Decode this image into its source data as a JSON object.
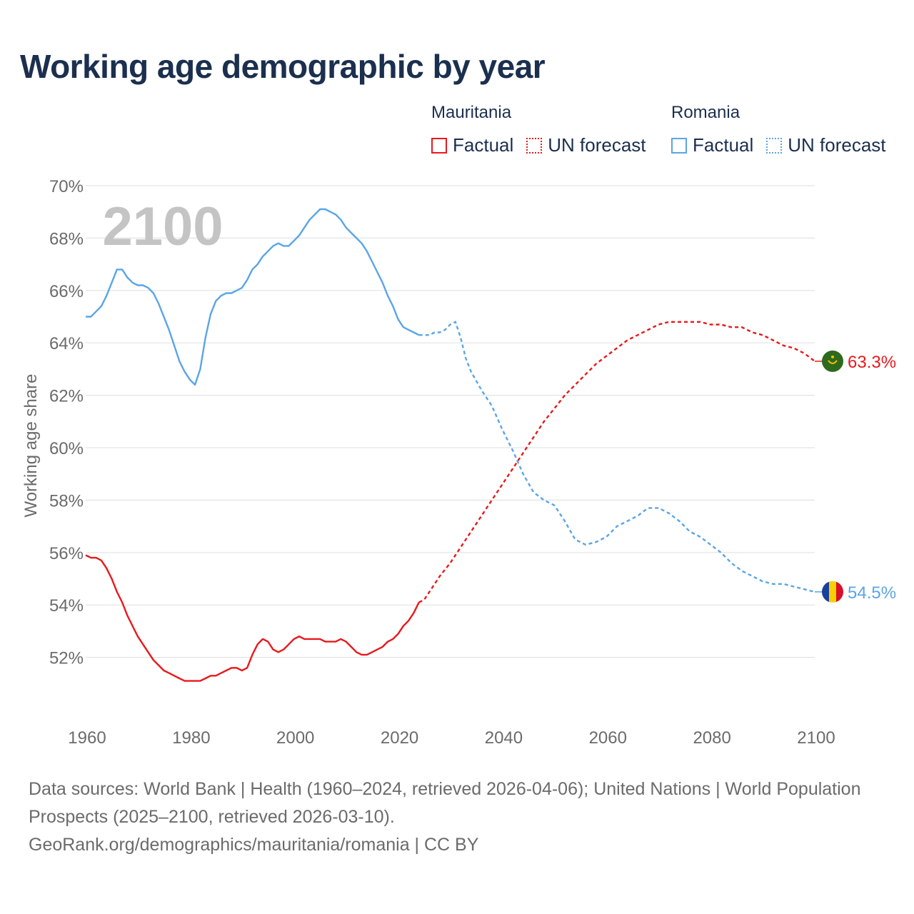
{
  "title": "Working age demographic by year",
  "legend": {
    "groups": [
      {
        "name": "Mauritania",
        "factual_label": "Factual",
        "forecast_label": "UN forecast",
        "color": "#e8191c"
      },
      {
        "name": "Romania",
        "factual_label": "Factual",
        "forecast_label": "UN forecast",
        "color": "#5aa5e6"
      }
    ]
  },
  "chart_data": {
    "type": "line",
    "title": "Working age demographic by year",
    "xlabel": "",
    "ylabel": "Working age share",
    "xlim": [
      1960,
      2100
    ],
    "ylim": [
      50,
      70
    ],
    "yticks": [
      52,
      54,
      56,
      58,
      60,
      62,
      64,
      66,
      68,
      70
    ],
    "ytick_labels": [
      "52%",
      "54%",
      "56%",
      "58%",
      "60%",
      "62%",
      "64%",
      "66%",
      "68%",
      "70%"
    ],
    "xticks": [
      1960,
      1980,
      2000,
      2020,
      2040,
      2060,
      2080,
      2100
    ],
    "xtick_labels": [
      "1960",
      "1980",
      "2000",
      "2020",
      "2040",
      "2060",
      "2080",
      "2100"
    ],
    "year_watermark": "2100",
    "series": [
      {
        "name": "Mauritania",
        "color": "#e8191c",
        "end_label": "63.3%",
        "factual": [
          [
            1960,
            55.9
          ],
          [
            1961,
            55.8
          ],
          [
            1962,
            55.8
          ],
          [
            1963,
            55.7
          ],
          [
            1964,
            55.4
          ],
          [
            1965,
            55.0
          ],
          [
            1966,
            54.5
          ],
          [
            1967,
            54.1
          ],
          [
            1968,
            53.6
          ],
          [
            1969,
            53.2
          ],
          [
            1970,
            52.8
          ],
          [
            1971,
            52.5
          ],
          [
            1972,
            52.2
          ],
          [
            1973,
            51.9
          ],
          [
            1974,
            51.7
          ],
          [
            1975,
            51.5
          ],
          [
            1976,
            51.4
          ],
          [
            1977,
            51.3
          ],
          [
            1978,
            51.2
          ],
          [
            1979,
            51.1
          ],
          [
            1980,
            51.1
          ],
          [
            1981,
            51.1
          ],
          [
            1982,
            51.1
          ],
          [
            1983,
            51.2
          ],
          [
            1984,
            51.3
          ],
          [
            1985,
            51.3
          ],
          [
            1986,
            51.4
          ],
          [
            1987,
            51.5
          ],
          [
            1988,
            51.6
          ],
          [
            1989,
            51.6
          ],
          [
            1990,
            51.5
          ],
          [
            1991,
            51.6
          ],
          [
            1992,
            52.1
          ],
          [
            1993,
            52.5
          ],
          [
            1994,
            52.7
          ],
          [
            1995,
            52.6
          ],
          [
            1996,
            52.3
          ],
          [
            1997,
            52.2
          ],
          [
            1998,
            52.3
          ],
          [
            1999,
            52.5
          ],
          [
            2000,
            52.7
          ],
          [
            2001,
            52.8
          ],
          [
            2002,
            52.7
          ],
          [
            2003,
            52.7
          ],
          [
            2004,
            52.7
          ],
          [
            2005,
            52.7
          ],
          [
            2006,
            52.6
          ],
          [
            2007,
            52.6
          ],
          [
            2008,
            52.6
          ],
          [
            2009,
            52.7
          ],
          [
            2010,
            52.6
          ],
          [
            2011,
            52.4
          ],
          [
            2012,
            52.2
          ],
          [
            2013,
            52.1
          ],
          [
            2014,
            52.1
          ],
          [
            2015,
            52.2
          ],
          [
            2016,
            52.3
          ],
          [
            2017,
            52.4
          ],
          [
            2018,
            52.6
          ],
          [
            2019,
            52.7
          ],
          [
            2020,
            52.9
          ],
          [
            2021,
            53.2
          ],
          [
            2022,
            53.4
          ],
          [
            2023,
            53.7
          ],
          [
            2024,
            54.1
          ]
        ],
        "forecast": [
          [
            2024,
            54.1
          ],
          [
            2025,
            54.2
          ],
          [
            2026,
            54.5
          ],
          [
            2028,
            55.1
          ],
          [
            2030,
            55.6
          ],
          [
            2032,
            56.2
          ],
          [
            2034,
            56.8
          ],
          [
            2036,
            57.4
          ],
          [
            2038,
            58.0
          ],
          [
            2040,
            58.6
          ],
          [
            2042,
            59.2
          ],
          [
            2044,
            59.8
          ],
          [
            2046,
            60.4
          ],
          [
            2048,
            61.0
          ],
          [
            2050,
            61.5
          ],
          [
            2052,
            62.0
          ],
          [
            2054,
            62.4
          ],
          [
            2056,
            62.8
          ],
          [
            2058,
            63.2
          ],
          [
            2060,
            63.5
          ],
          [
            2062,
            63.8
          ],
          [
            2064,
            64.1
          ],
          [
            2066,
            64.3
          ],
          [
            2068,
            64.5
          ],
          [
            2070,
            64.7
          ],
          [
            2072,
            64.8
          ],
          [
            2074,
            64.8
          ],
          [
            2076,
            64.8
          ],
          [
            2078,
            64.8
          ],
          [
            2080,
            64.7
          ],
          [
            2082,
            64.7
          ],
          [
            2084,
            64.6
          ],
          [
            2086,
            64.6
          ],
          [
            2088,
            64.4
          ],
          [
            2090,
            64.3
          ],
          [
            2092,
            64.1
          ],
          [
            2094,
            63.9
          ],
          [
            2096,
            63.8
          ],
          [
            2098,
            63.6
          ],
          [
            2100,
            63.3
          ]
        ]
      },
      {
        "name": "Romania",
        "color": "#5aa5e6",
        "end_label": "54.5%",
        "factual": [
          [
            1960,
            65.0
          ],
          [
            1961,
            65.0
          ],
          [
            1962,
            65.2
          ],
          [
            1963,
            65.4
          ],
          [
            1964,
            65.8
          ],
          [
            1965,
            66.3
          ],
          [
            1966,
            66.8
          ],
          [
            1967,
            66.8
          ],
          [
            1968,
            66.5
          ],
          [
            1969,
            66.3
          ],
          [
            1970,
            66.2
          ],
          [
            1971,
            66.2
          ],
          [
            1972,
            66.1
          ],
          [
            1973,
            65.9
          ],
          [
            1974,
            65.5
          ],
          [
            1975,
            65.0
          ],
          [
            1976,
            64.5
          ],
          [
            1977,
            63.9
          ],
          [
            1978,
            63.3
          ],
          [
            1979,
            62.9
          ],
          [
            1980,
            62.6
          ],
          [
            1981,
            62.4
          ],
          [
            1982,
            63.0
          ],
          [
            1983,
            64.2
          ],
          [
            1984,
            65.1
          ],
          [
            1985,
            65.6
          ],
          [
            1986,
            65.8
          ],
          [
            1987,
            65.9
          ],
          [
            1988,
            65.9
          ],
          [
            1989,
            66.0
          ],
          [
            1990,
            66.1
          ],
          [
            1991,
            66.4
          ],
          [
            1992,
            66.8
          ],
          [
            1993,
            67.0
          ],
          [
            1994,
            67.3
          ],
          [
            1995,
            67.5
          ],
          [
            1996,
            67.7
          ],
          [
            1997,
            67.8
          ],
          [
            1998,
            67.7
          ],
          [
            1999,
            67.7
          ],
          [
            2000,
            67.9
          ],
          [
            2001,
            68.1
          ],
          [
            2002,
            68.4
          ],
          [
            2003,
            68.7
          ],
          [
            2004,
            68.9
          ],
          [
            2005,
            69.1
          ],
          [
            2006,
            69.1
          ],
          [
            2007,
            69.0
          ],
          [
            2008,
            68.9
          ],
          [
            2009,
            68.7
          ],
          [
            2010,
            68.4
          ],
          [
            2011,
            68.2
          ],
          [
            2012,
            68.0
          ],
          [
            2013,
            67.8
          ],
          [
            2014,
            67.5
          ],
          [
            2015,
            67.1
          ],
          [
            2016,
            66.7
          ],
          [
            2017,
            66.3
          ],
          [
            2018,
            65.8
          ],
          [
            2019,
            65.4
          ],
          [
            2020,
            64.9
          ],
          [
            2021,
            64.6
          ],
          [
            2022,
            64.5
          ],
          [
            2023,
            64.4
          ],
          [
            2024,
            64.3
          ]
        ],
        "forecast": [
          [
            2024,
            64.3
          ],
          [
            2025,
            64.3
          ],
          [
            2026,
            64.3
          ],
          [
            2027,
            64.4
          ],
          [
            2028,
            64.4
          ],
          [
            2029,
            64.5
          ],
          [
            2030,
            64.7
          ],
          [
            2031,
            64.8
          ],
          [
            2032,
            64.2
          ],
          [
            2033,
            63.4
          ],
          [
            2034,
            62.9
          ],
          [
            2036,
            62.2
          ],
          [
            2038,
            61.6
          ],
          [
            2040,
            60.7
          ],
          [
            2042,
            59.9
          ],
          [
            2044,
            59.0
          ],
          [
            2046,
            58.3
          ],
          [
            2048,
            58.0
          ],
          [
            2050,
            57.8
          ],
          [
            2052,
            57.2
          ],
          [
            2054,
            56.5
          ],
          [
            2056,
            56.3
          ],
          [
            2058,
            56.4
          ],
          [
            2060,
            56.6
          ],
          [
            2062,
            57.0
          ],
          [
            2064,
            57.2
          ],
          [
            2066,
            57.4
          ],
          [
            2068,
            57.7
          ],
          [
            2070,
            57.7
          ],
          [
            2072,
            57.5
          ],
          [
            2074,
            57.2
          ],
          [
            2076,
            56.8
          ],
          [
            2078,
            56.6
          ],
          [
            2080,
            56.3
          ],
          [
            2082,
            56.0
          ],
          [
            2084,
            55.6
          ],
          [
            2086,
            55.3
          ],
          [
            2088,
            55.1
          ],
          [
            2090,
            54.9
          ],
          [
            2092,
            54.8
          ],
          [
            2094,
            54.8
          ],
          [
            2096,
            54.7
          ],
          [
            2098,
            54.6
          ],
          [
            2100,
            54.5
          ]
        ]
      }
    ]
  },
  "footer": {
    "sources": "Data sources: World Bank | Health (1960–2024, retrieved 2026-04-06); United Nations | World Population Prospects (2025–2100, retrieved 2026-03-10).",
    "attribution": "GeoRank.org/demographics/mauritania/romania | CC BY"
  }
}
